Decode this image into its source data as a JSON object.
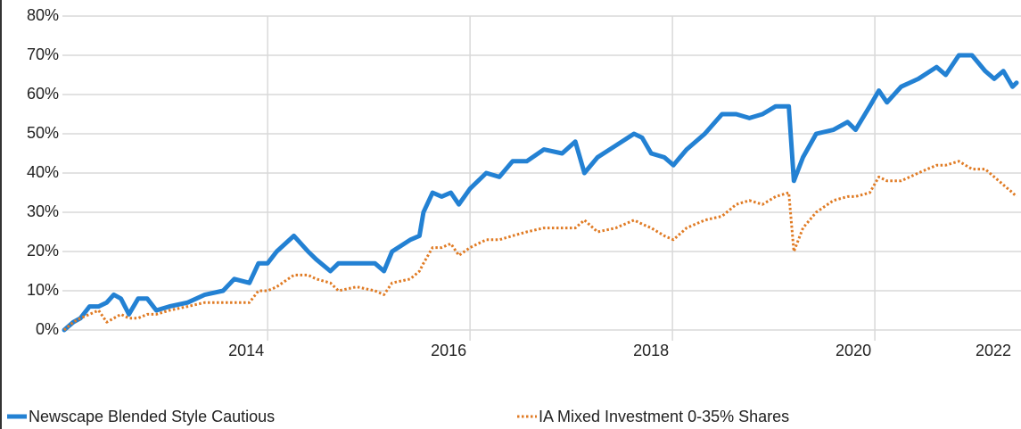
{
  "chart_data": {
    "type": "line",
    "x": [
      2011.99,
      2012.08,
      2012.15,
      2012.24,
      2012.33,
      2012.41,
      2012.48,
      2012.55,
      2012.63,
      2012.72,
      2012.81,
      2012.9,
      2013.03,
      2013.21,
      2013.38,
      2013.56,
      2013.67,
      2013.82,
      2013.91,
      2014.0,
      2014.09,
      2014.26,
      2014.4,
      2014.48,
      2014.62,
      2014.7,
      2014.88,
      2015.06,
      2015.15,
      2015.23,
      2015.41,
      2015.5,
      2015.54,
      2015.63,
      2015.72,
      2015.81,
      2015.89,
      2016.0,
      2016.16,
      2016.29,
      2016.42,
      2016.56,
      2016.73,
      2016.91,
      2017.04,
      2017.13,
      2017.26,
      2017.44,
      2017.62,
      2017.7,
      2017.79,
      2017.92,
      2018.01,
      2018.14,
      2018.32,
      2018.49,
      2018.63,
      2018.76,
      2018.89,
      2019.02,
      2019.15,
      2019.2,
      2019.29,
      2019.42,
      2019.59,
      2019.73,
      2019.81,
      2019.95,
      2020.04,
      2020.12,
      2020.26,
      2020.43,
      2020.61,
      2020.7,
      2020.83,
      2020.96,
      2021.09,
      2021.18,
      2021.27,
      2021.36,
      2021.4
    ],
    "series": [
      {
        "name": "Newscape Blended Style Cautious",
        "color": "#2381d3",
        "style": "solid",
        "values": [
          0,
          2,
          3,
          6,
          6,
          7,
          9,
          8,
          4,
          8,
          8,
          5,
          6,
          7,
          9,
          10,
          13,
          12,
          17,
          17,
          20,
          24,
          20,
          18,
          15,
          17,
          17,
          17,
          15,
          20,
          23,
          24,
          30,
          35,
          34,
          35,
          32,
          36,
          40,
          39,
          43,
          43,
          46,
          45,
          48,
          40,
          44,
          47,
          50,
          49,
          45,
          44,
          42,
          46,
          50,
          55,
          55,
          54,
          55,
          57,
          57,
          38,
          44,
          50,
          51,
          53,
          51,
          57,
          61,
          58,
          62,
          64,
          67,
          65,
          70,
          70,
          66,
          64,
          66,
          62,
          63
        ]
      },
      {
        "name": "IA Mixed Investment 0-35% Shares",
        "color": "#e07b24",
        "style": "dotted",
        "values": [
          0,
          2,
          3,
          4,
          5,
          2,
          3,
          4,
          3,
          3,
          4,
          4,
          5,
          6,
          7,
          7,
          7,
          7,
          10,
          10,
          11,
          14,
          14,
          13,
          12,
          10,
          11,
          10,
          9,
          12,
          13,
          15,
          17,
          21,
          21,
          22,
          19,
          21,
          23,
          23,
          24,
          25,
          26,
          26,
          26,
          28,
          25,
          26,
          28,
          27,
          26,
          24,
          23,
          26,
          28,
          29,
          32,
          33,
          32,
          34,
          35,
          20,
          26,
          30,
          33,
          34,
          34,
          35,
          39,
          38,
          38,
          40,
          42,
          42,
          43,
          41,
          41,
          39,
          37,
          35,
          34
        ]
      }
    ],
    "xlim": [
      2011.99,
      2021.4
    ],
    "xticks": [
      2014,
      2016,
      2018,
      2020,
      2022
    ],
    "ylim": [
      0,
      80
    ],
    "yticks": [
      {
        "value": 0,
        "label": "0%"
      },
      {
        "value": 10,
        "label": "10%"
      },
      {
        "value": 20,
        "label": "20%"
      },
      {
        "value": 30,
        "label": "30%"
      },
      {
        "value": 40,
        "label": "40%"
      },
      {
        "value": 50,
        "label": "50%"
      },
      {
        "value": 60,
        "label": "60%"
      },
      {
        "value": 70,
        "label": "70%"
      },
      {
        "value": 80,
        "label": "80%"
      }
    ],
    "grid": true,
    "legend": "bottom"
  }
}
